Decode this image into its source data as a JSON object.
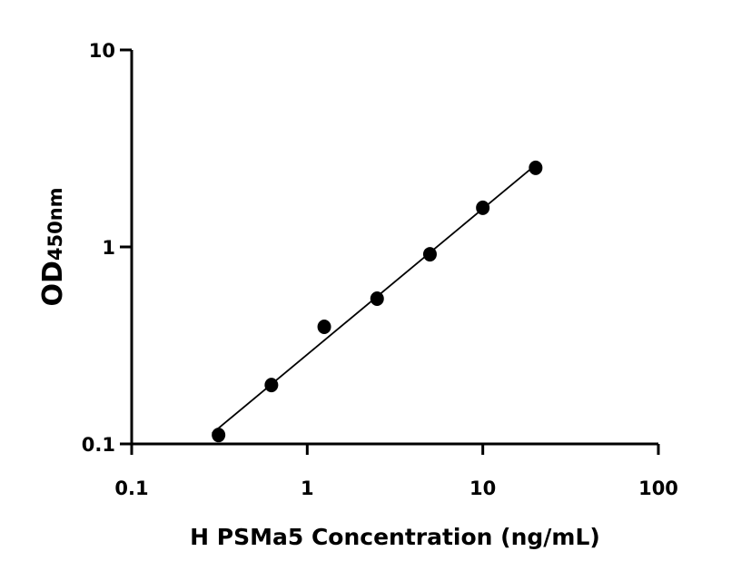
{
  "chart_data": {
    "type": "scatter",
    "xlabel": "H PSMa5 Concentration (ng/mL)",
    "ylabel_main": "OD",
    "ylabel_sub": "450nm",
    "xscale": "log",
    "yscale": "log",
    "xlim": [
      0.1,
      100
    ],
    "ylim": [
      0.1,
      10
    ],
    "xticks": [
      "0.1",
      "1",
      "10",
      "100"
    ],
    "yticks": [
      "0.1",
      "1",
      "10"
    ],
    "grid": false,
    "fit_line": "linear fit on log-log axes",
    "points": [
      {
        "x": 0.3125,
        "y": 0.111
      },
      {
        "x": 0.625,
        "y": 0.199
      },
      {
        "x": 1.25,
        "y": 0.393
      },
      {
        "x": 2.5,
        "y": 0.546
      },
      {
        "x": 5,
        "y": 0.918
      },
      {
        "x": 10,
        "y": 1.58
      },
      {
        "x": 20,
        "y": 2.52
      }
    ],
    "colors": {
      "marker": "#000000",
      "line": "#000000",
      "axis": "#000000"
    }
  }
}
